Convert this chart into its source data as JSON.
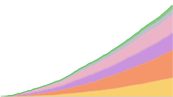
{
  "n_points": 100,
  "layers": [
    {
      "name": "Yellow",
      "color": "#f9d06e",
      "alpha": 1.0,
      "base_scale": 0.22,
      "power": 2.0,
      "noise": 0.008
    },
    {
      "name": "Orange",
      "color": "#f4956a",
      "alpha": 1.0,
      "base_scale": 0.3,
      "power": 1.7,
      "noise": 0.015
    },
    {
      "name": "Purple",
      "color": "#c080d8",
      "alpha": 0.85,
      "base_scale": 0.2,
      "power": 1.5,
      "noise": 0.012
    },
    {
      "name": "Pink",
      "color": "#e8a8be",
      "alpha": 0.85,
      "base_scale": 0.22,
      "power": 1.4,
      "noise": 0.012
    },
    {
      "name": "Gray",
      "color": "#b8b4c8",
      "alpha": 0.85,
      "base_scale": 0.06,
      "power": 1.6,
      "noise": 0.005
    },
    {
      "name": "Green",
      "color": "#78c878",
      "alpha": 0.9,
      "base_scale": 0.04,
      "power": 1.6,
      "noise": 0.003
    }
  ],
  "background_color": "#ffffff",
  "figsize": [
    2.5,
    1.4
  ],
  "dpi": 100
}
